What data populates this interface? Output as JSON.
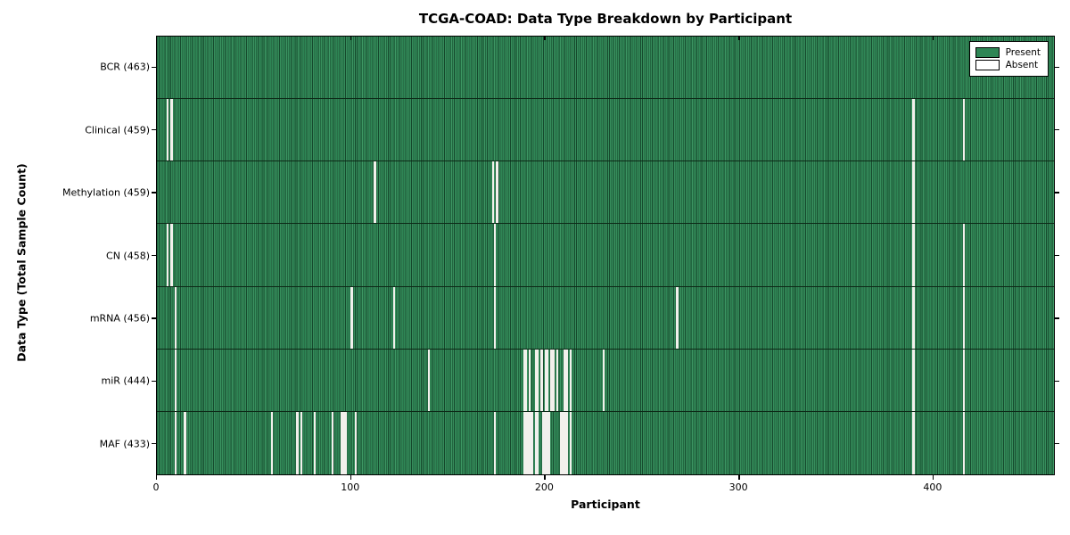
{
  "title": "TCGA-COAD: Data Type Breakdown by Participant",
  "legend": {
    "present_label": "Present",
    "absent_label": "Absent"
  },
  "colors": {
    "present": "#2e8655",
    "absent": "#f2f0ec",
    "axis": "#000000"
  },
  "chart_data": {
    "type": "heatmap",
    "title": "TCGA-COAD: Data Type Breakdown by Participant",
    "xlabel": "Participant",
    "ylabel": "Data Type (Total Sample Count)",
    "legend_entries": [
      "Present",
      "Absent"
    ],
    "legend_position": "upper right",
    "grid": false,
    "n_participants": 463,
    "xlim": [
      0,
      463
    ],
    "x_ticks": [
      0,
      100,
      200,
      300,
      400
    ],
    "rows": [
      {
        "label": "BCR (463)",
        "data_type": "BCR",
        "present_count": 463,
        "absent_participants": []
      },
      {
        "label": "Clinical (459)",
        "data_type": "Clinical",
        "present_count": 459,
        "absent_participants": [
          5,
          7,
          390,
          416
        ]
      },
      {
        "label": "Methylation (459)",
        "data_type": "Methylation",
        "present_count": 459,
        "absent_participants": [
          112,
          173,
          175,
          390
        ]
      },
      {
        "label": "CN (458)",
        "data_type": "CN",
        "present_count": 458,
        "absent_participants": [
          5,
          7,
          174,
          390,
          416
        ]
      },
      {
        "label": "mRNA (456)",
        "data_type": "mRNA",
        "present_count": 456,
        "absent_participants": [
          9,
          100,
          122,
          174,
          268,
          390,
          416
        ]
      },
      {
        "label": "miR (444)",
        "data_type": "miR",
        "present_count": 444,
        "absent_participants": [
          9,
          140,
          189,
          190,
          192,
          195,
          196,
          198,
          200,
          201,
          203,
          204,
          206,
          210,
          211,
          213,
          230,
          390,
          416
        ]
      },
      {
        "label": "MAF (433)",
        "data_type": "MAF",
        "present_count": 433,
        "absent_participants": [
          9,
          14,
          59,
          72,
          74,
          81,
          90,
          95,
          96,
          97,
          102,
          174,
          189,
          190,
          191,
          192,
          193,
          195,
          196,
          199,
          200,
          201,
          202,
          208,
          209,
          210,
          211,
          213,
          390,
          416
        ]
      }
    ]
  }
}
